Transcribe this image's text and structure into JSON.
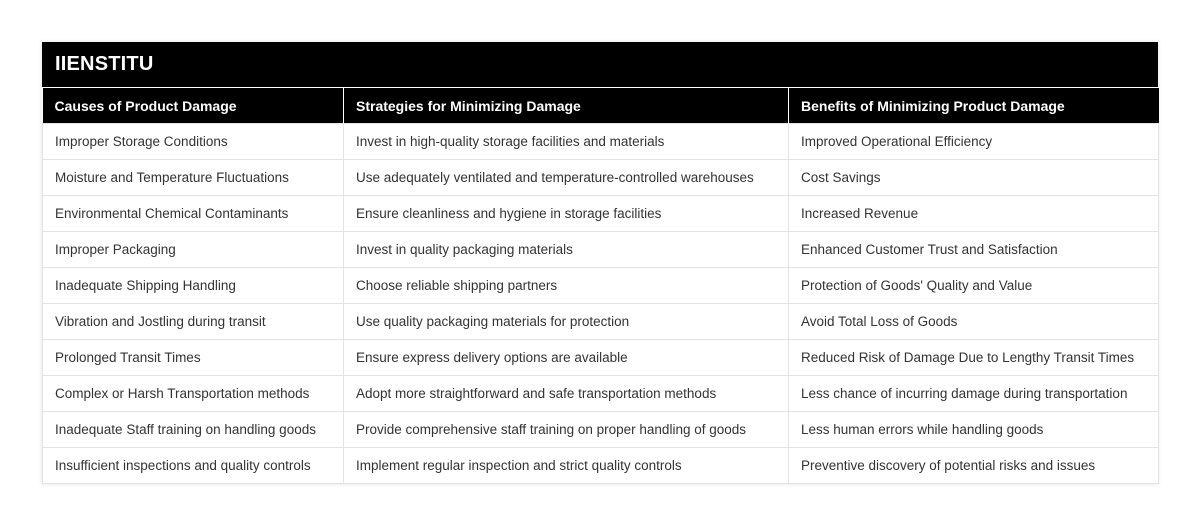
{
  "title": "IIENSTITU",
  "headers": [
    "Causes of Product Damage",
    "Strategies for Minimizing Damage",
    "Benefits of Minimizing Product Damage"
  ],
  "rows": [
    [
      "Improper Storage Conditions",
      "Invest in high-quality storage facilities and materials",
      "Improved Operational Efficiency"
    ],
    [
      "Moisture and Temperature Fluctuations",
      "Use adequately ventilated and temperature-controlled warehouses",
      "Cost Savings"
    ],
    [
      "Environmental Chemical Contaminants",
      "Ensure cleanliness and hygiene in storage facilities",
      "Increased Revenue"
    ],
    [
      "Improper Packaging",
      "Invest in quality packaging materials",
      "Enhanced Customer Trust and Satisfaction"
    ],
    [
      "Inadequate Shipping Handling",
      "Choose reliable shipping partners",
      "Protection of Goods' Quality and Value"
    ],
    [
      "Vibration and Jostling during transit",
      "Use quality packaging materials for protection",
      "Avoid Total Loss of Goods"
    ],
    [
      "Prolonged Transit Times",
      "Ensure express delivery options are available",
      "Reduced Risk of Damage Due to Lengthy Transit Times"
    ],
    [
      "Complex or Harsh Transportation methods",
      "Adopt more straightforward and safe transportation methods",
      "Less chance of incurring damage during transportation"
    ],
    [
      "Inadequate Staff training on handling goods",
      "Provide comprehensive staff training on proper handling of goods",
      "Less human errors while handling goods"
    ],
    [
      "Insufficient inspections and quality controls",
      "Implement regular inspection and strict quality controls",
      "Preventive discovery of potential risks and issues"
    ]
  ]
}
